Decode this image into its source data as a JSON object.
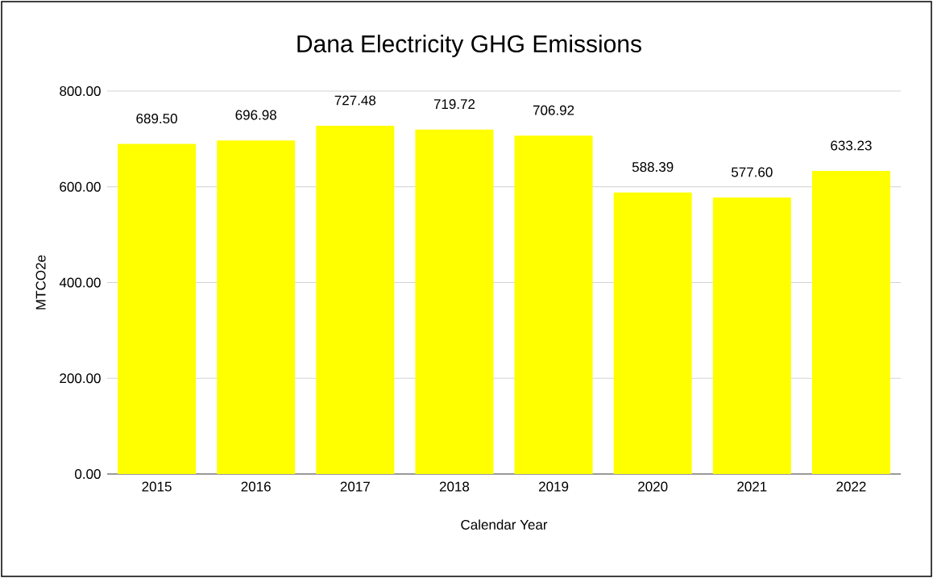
{
  "chart_data": {
    "type": "bar",
    "title": "Dana Electricity GHG Emissions",
    "xlabel": "Calendar Year",
    "ylabel": "MTCO2e",
    "categories": [
      "2015",
      "2016",
      "2017",
      "2018",
      "2019",
      "2020",
      "2021",
      "2022"
    ],
    "values": [
      689.5,
      696.98,
      727.48,
      719.72,
      706.92,
      588.39,
      577.6,
      633.23
    ],
    "value_labels": [
      "689.50",
      "696.98",
      "727.48",
      "719.72",
      "706.92",
      "588.39",
      "577.60",
      "633.23"
    ],
    "color": "#ffff00",
    "ylim": [
      0,
      800
    ],
    "yticks": [
      {
        "value": 0,
        "label": "0.00"
      },
      {
        "value": 200,
        "label": "200.00"
      },
      {
        "value": 400,
        "label": "400.00"
      },
      {
        "value": 600,
        "label": "600.00"
      },
      {
        "value": 800,
        "label": "800.00"
      }
    ],
    "grid": "y"
  }
}
